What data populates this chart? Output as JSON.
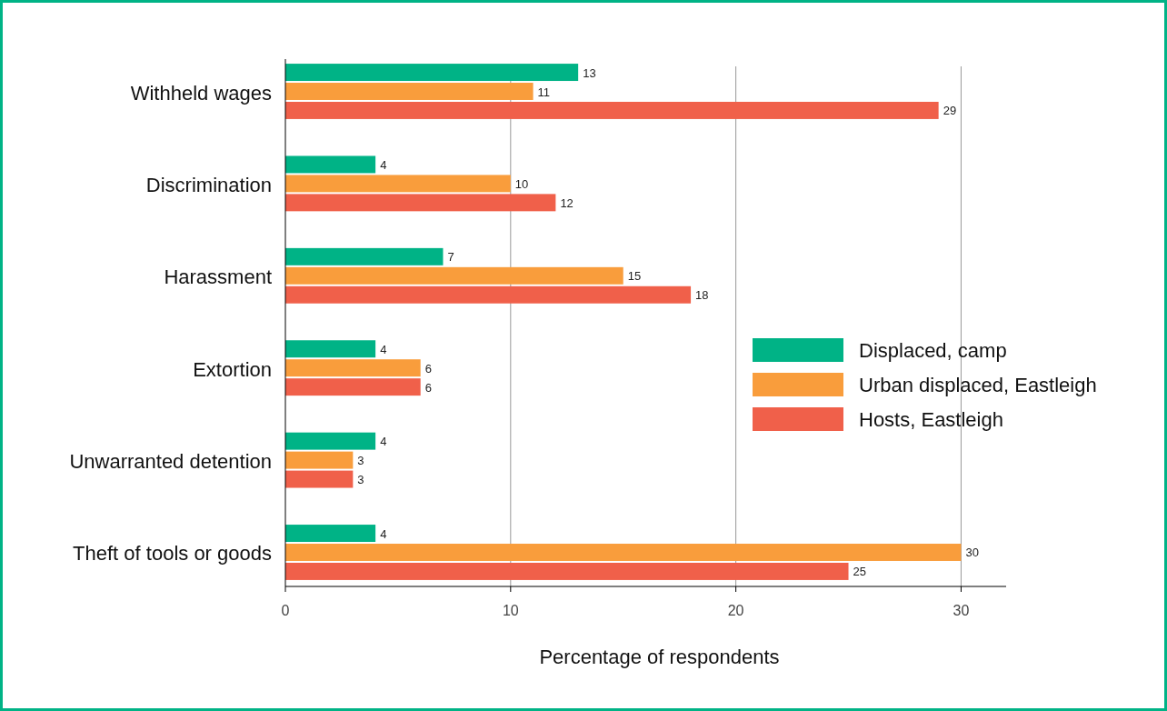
{
  "chart_data": {
    "type": "bar",
    "orientation": "horizontal",
    "xlabel": "Percentage of respondents",
    "categories": [
      "Withheld wages",
      "Discrimination",
      "Harassment",
      "Extortion",
      "Unwarranted detention",
      "Theft of tools or goods"
    ],
    "series": [
      {
        "name": "Displaced, camp",
        "color": "#00b386",
        "values": [
          13,
          4,
          7,
          4,
          4,
          4
        ]
      },
      {
        "name": "Urban displaced, Eastleigh",
        "color": "#f99d3c",
        "values": [
          11,
          10,
          15,
          6,
          3,
          30
        ]
      },
      {
        "name": "Hosts, Eastleigh",
        "color": "#f0604a",
        "values": [
          29,
          12,
          18,
          6,
          3,
          25
        ]
      }
    ],
    "xlim": [
      0,
      32
    ],
    "xticks": [
      0,
      10,
      20,
      30
    ],
    "grid": "x",
    "legend": "right",
    "data_labels": true
  }
}
